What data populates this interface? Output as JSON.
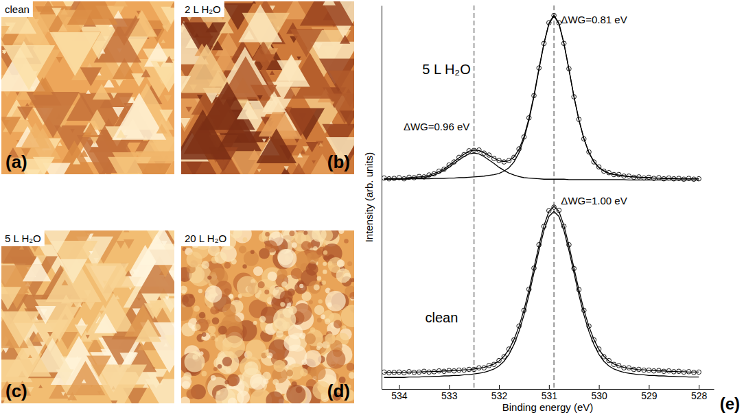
{
  "images": [
    {
      "letter": "(a)",
      "label": "clean"
    },
    {
      "letter": "(b)",
      "label": "2 L H₂O"
    },
    {
      "letter": "(c)",
      "label": "5 L H₂O"
    },
    {
      "letter": "(d)",
      "label": "20 L H₂O"
    }
  ],
  "chart_data": {
    "type": "line",
    "panel_label": "(e)",
    "x_label": "Binding energy (eV)",
    "y_label": "Intensity (arb. units)",
    "xlim": [
      534.35,
      527.7
    ],
    "xticks": [
      534,
      533,
      532,
      531,
      530,
      529,
      528
    ],
    "ylim": [
      0,
      10
    ],
    "tick_labels": "x",
    "grid": false,
    "x": [
      534.3,
      534.2,
      534.1,
      534.0,
      533.9,
      533.8,
      533.7,
      533.6,
      533.5,
      533.4,
      533.3,
      533.2,
      533.1,
      533.0,
      532.9,
      532.8,
      532.7,
      532.6,
      532.5,
      532.4,
      532.3,
      532.2,
      532.1,
      532.0,
      531.9,
      531.8,
      531.7,
      531.6,
      531.5,
      531.4,
      531.3,
      531.2,
      531.1,
      531.0,
      530.9,
      530.8,
      530.7,
      530.6,
      530.5,
      530.4,
      530.3,
      530.2,
      530.1,
      530.0,
      529.9,
      529.8,
      529.7,
      529.6,
      529.5,
      529.4,
      529.3,
      529.2,
      529.1,
      529.0,
      528.9,
      528.8,
      528.7,
      528.6,
      528.5,
      528.4,
      528.3,
      528.2,
      528.1,
      528.0
    ],
    "series": [
      {
        "type": "scatter",
        "marker": "circle",
        "color": "#000000",
        "values": [
          5.5,
          5.48,
          5.49,
          5.51,
          5.48,
          5.52,
          5.51,
          5.54,
          5.53,
          5.58,
          5.61,
          5.68,
          5.73,
          5.84,
          5.92,
          6.04,
          6.11,
          6.21,
          6.22,
          6.23,
          6.15,
          6.1,
          6.01,
          5.96,
          5.92,
          5.96,
          6.04,
          6.26,
          6.57,
          7.07,
          7.65,
          8.37,
          9.01,
          9.55,
          9.74,
          9.55,
          9.01,
          8.35,
          7.62,
          7.03,
          6.52,
          6.18,
          5.92,
          5.79,
          5.68,
          5.64,
          5.59,
          5.59,
          5.55,
          5.55,
          5.52,
          5.53,
          5.5,
          5.52,
          5.49,
          5.51,
          5.48,
          5.5,
          5.48,
          5.49,
          5.47,
          5.49,
          5.47,
          5.48
        ]
      },
      {
        "type": "line",
        "line_style": "solid",
        "color": "#000000",
        "values": [
          5.49,
          5.49,
          5.49,
          5.49,
          5.49,
          5.51,
          5.52,
          5.53,
          5.54,
          5.57,
          5.62,
          5.67,
          5.74,
          5.83,
          5.93,
          6.03,
          6.12,
          6.2,
          6.23,
          6.22,
          6.16,
          6.09,
          6.02,
          5.95,
          5.93,
          5.95,
          6.05,
          6.25,
          6.58,
          7.06,
          7.66,
          8.36,
          9.02,
          9.54,
          9.75,
          9.54,
          9.02,
          8.34,
          7.63,
          7.02,
          6.53,
          6.17,
          5.93,
          5.78,
          5.69,
          5.63,
          5.6,
          5.58,
          5.56,
          5.54,
          5.53,
          5.52,
          5.51,
          5.51,
          5.5,
          5.5,
          5.49,
          5.49,
          5.49,
          5.48,
          5.48,
          5.48,
          5.48,
          5.48
        ]
      },
      {
        "type": "line",
        "line_style": "solid",
        "color": "#000000",
        "values": [
          5.47,
          5.47,
          5.47,
          5.47,
          5.47,
          5.48,
          5.48,
          5.48,
          5.48,
          5.48,
          5.49,
          5.49,
          5.49,
          5.5,
          5.5,
          5.51,
          5.51,
          5.52,
          5.53,
          5.54,
          5.55,
          5.57,
          5.59,
          5.62,
          5.68,
          5.77,
          5.92,
          6.16,
          6.52,
          7.01,
          7.62,
          8.33,
          9.0,
          9.52,
          9.73,
          9.52,
          9.0,
          8.33,
          7.62,
          7.01,
          6.52,
          6.16,
          5.92,
          5.77,
          5.68,
          5.62,
          5.59,
          5.57,
          5.55,
          5.54,
          5.53,
          5.52,
          5.51,
          5.51,
          5.5,
          5.5,
          5.49,
          5.49,
          5.49,
          5.48,
          5.48,
          5.48,
          5.48,
          5.48
        ]
      },
      {
        "type": "line",
        "line_style": "solid",
        "color": "#000000",
        "values": [
          5.47,
          5.47,
          5.47,
          5.47,
          5.47,
          5.48,
          5.49,
          5.5,
          5.51,
          5.54,
          5.58,
          5.63,
          5.7,
          5.78,
          5.88,
          5.97,
          6.06,
          6.13,
          6.15,
          6.13,
          6.06,
          5.97,
          5.88,
          5.78,
          5.7,
          5.63,
          5.58,
          5.54,
          5.51,
          5.5,
          5.49,
          5.48,
          5.47,
          5.47,
          5.47,
          5.47,
          5.47,
          5.46,
          5.46,
          5.46,
          5.46,
          5.46,
          5.46,
          5.46,
          5.46,
          5.46,
          5.46,
          5.46,
          5.46,
          5.45,
          5.45,
          5.45,
          5.45,
          5.45,
          5.45,
          5.45,
          5.45,
          5.45,
          5.45,
          5.45,
          5.45,
          5.45,
          5.45,
          5.45
        ]
      },
      {
        "type": "scatter",
        "marker": "circle",
        "color": "#000000",
        "values": [
          0.44,
          0.42,
          0.43,
          0.44,
          0.42,
          0.45,
          0.43,
          0.44,
          0.46,
          0.44,
          0.45,
          0.47,
          0.46,
          0.48,
          0.47,
          0.49,
          0.49,
          0.51,
          0.51,
          0.55,
          0.55,
          0.61,
          0.64,
          0.74,
          0.84,
          1.04,
          1.28,
          1.64,
          2.05,
          2.6,
          3.15,
          3.76,
          4.24,
          4.65,
          4.74,
          4.66,
          4.24,
          3.76,
          3.14,
          2.59,
          2.05,
          1.64,
          1.28,
          1.04,
          0.84,
          0.74,
          0.64,
          0.61,
          0.55,
          0.55,
          0.51,
          0.51,
          0.49,
          0.49,
          0.47,
          0.48,
          0.46,
          0.47,
          0.45,
          0.46,
          0.44,
          0.45,
          0.43,
          0.44
        ]
      },
      {
        "type": "line",
        "line_style": "solid",
        "color": "#000000",
        "values": [
          0.43,
          0.43,
          0.43,
          0.43,
          0.43,
          0.44,
          0.44,
          0.44,
          0.45,
          0.45,
          0.46,
          0.46,
          0.47,
          0.47,
          0.48,
          0.48,
          0.5,
          0.5,
          0.52,
          0.54,
          0.56,
          0.6,
          0.65,
          0.73,
          0.85,
          1.03,
          1.29,
          1.63,
          2.06,
          2.58,
          3.16,
          3.74,
          4.26,
          4.63,
          4.76,
          4.63,
          4.26,
          3.74,
          3.16,
          2.58,
          2.06,
          1.63,
          1.29,
          1.03,
          0.85,
          0.73,
          0.65,
          0.6,
          0.56,
          0.54,
          0.52,
          0.5,
          0.5,
          0.48,
          0.48,
          0.47,
          0.47,
          0.46,
          0.46,
          0.45,
          0.45,
          0.44,
          0.44,
          0.44
        ]
      },
      {
        "type": "line",
        "line_style": "solid",
        "color": "#000000",
        "values": [
          0.3,
          0.3,
          0.3,
          0.3,
          0.3,
          0.31,
          0.31,
          0.31,
          0.32,
          0.32,
          0.33,
          0.33,
          0.34,
          0.34,
          0.35,
          0.35,
          0.37,
          0.37,
          0.39,
          0.41,
          0.43,
          0.47,
          0.52,
          0.6,
          0.72,
          0.9,
          1.16,
          1.5,
          1.93,
          2.45,
          3.03,
          3.61,
          4.13,
          4.5,
          4.63,
          4.5,
          4.13,
          3.61,
          3.03,
          2.45,
          1.93,
          1.5,
          1.16,
          0.9,
          0.72,
          0.6,
          0.52,
          0.47,
          0.43,
          0.41,
          0.39,
          0.37,
          0.37,
          0.35,
          0.35,
          0.34,
          0.34,
          0.33,
          0.33,
          0.32,
          0.32,
          0.31,
          0.31,
          0.31
        ]
      }
    ],
    "vlines": [
      {
        "value": 532.5,
        "line_style": "dashed"
      },
      {
        "value": 530.9,
        "line_style": "dashed"
      }
    ],
    "annotations": [
      "5 L H₂O",
      "ΔWG=0.96 eV",
      "ΔWG=0.81 eV",
      "ΔWG=1.00 eV",
      "clean"
    ]
  }
}
